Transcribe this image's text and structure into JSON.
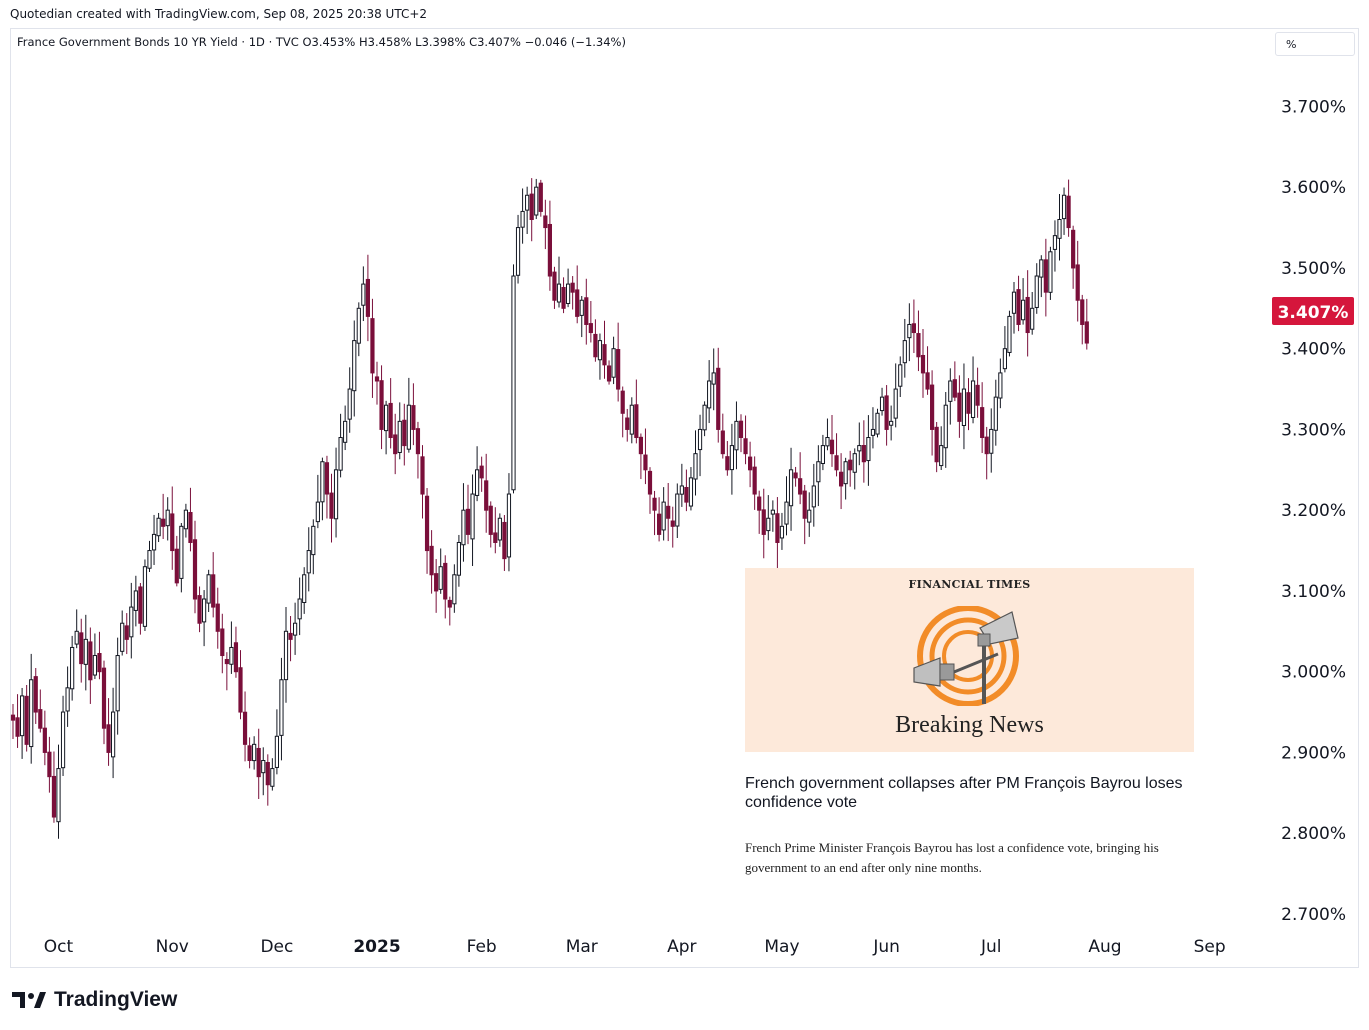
{
  "header": {
    "attribution": "Quotedian created with TradingView.com, Sep 08, 2025 20:38 UTC+2"
  },
  "legend": {
    "text": "France Government Bonds 10 YR Yield · 1D · TVC  O3.453%  H3.458%  L3.398%  C3.407%  −0.046 (−1.34%)"
  },
  "unit_label": "%",
  "last_price_label": "3.407%",
  "colors": {
    "up": "#131722",
    "down": "#7a0f3a",
    "price_tag": "#d5163c",
    "grid": "#e0e3eb"
  },
  "news": {
    "publisher": "FINANCIAL TIMES",
    "badge": "Breaking News",
    "icon": "megaphone-icon",
    "headline": "French government collapses after PM François Bayrou loses confidence vote",
    "summary": "French Prime Minister François Bayrou has lost a confidence vote, bringing his government to an end after only nine months."
  },
  "brand": {
    "name": "TradingView",
    "icon": "tradingview-logo-icon"
  },
  "chart_data": {
    "type": "candlestick",
    "y_axis": {
      "range": [
        2.69,
        3.76
      ],
      "ticks": [
        {
          "value": 3.7,
          "label": "3.700%"
        },
        {
          "value": 3.6,
          "label": "3.600%"
        },
        {
          "value": 3.5,
          "label": "3.500%"
        },
        {
          "value": 3.4,
          "label": "3.400%"
        },
        {
          "value": 3.3,
          "label": "3.300%"
        },
        {
          "value": 3.2,
          "label": "3.200%"
        },
        {
          "value": 3.1,
          "label": "3.100%"
        },
        {
          "value": 3.0,
          "label": "3.000%"
        },
        {
          "value": 2.9,
          "label": "2.900%"
        },
        {
          "value": 2.8,
          "label": "2.800%"
        },
        {
          "value": 2.7,
          "label": "2.700%"
        }
      ]
    },
    "x_axis": {
      "ticks": [
        {
          "index": 10,
          "label": "Oct"
        },
        {
          "index": 35,
          "label": "Nov"
        },
        {
          "index": 58,
          "label": "Dec"
        },
        {
          "index": 80,
          "label": "2025",
          "bold": true
        },
        {
          "index": 103,
          "label": "Feb"
        },
        {
          "index": 125,
          "label": "Mar"
        },
        {
          "index": 147,
          "label": "Apr"
        },
        {
          "index": 169,
          "label": "May"
        },
        {
          "index": 192,
          "label": "Jun"
        },
        {
          "index": 215,
          "label": "Jul"
        },
        {
          "index": 240,
          "label": "Aug"
        },
        {
          "index": 263,
          "label": "Sep"
        }
      ]
    },
    "last_close": 3.407,
    "closes": [
      2.94,
      2.92,
      2.97,
      2.91,
      2.99,
      2.95,
      2.93,
      2.9,
      2.87,
      2.82,
      2.88,
      2.95,
      2.98,
      3.03,
      3.05,
      3.01,
      3.04,
      2.99,
      3.02,
      3.0,
      2.93,
      2.9,
      2.95,
      3.02,
      3.06,
      3.04,
      3.08,
      3.1,
      3.06,
      3.13,
      3.15,
      3.17,
      3.19,
      3.18,
      3.2,
      3.15,
      3.11,
      3.18,
      3.2,
      3.16,
      3.09,
      3.06,
      3.09,
      3.12,
      3.08,
      3.05,
      3.02,
      3.01,
      3.03,
      3.0,
      2.95,
      2.91,
      2.89,
      2.91,
      2.87,
      2.89,
      2.86,
      2.88,
      2.92,
      2.99,
      3.05,
      3.04,
      3.06,
      3.09,
      3.12,
      3.15,
      3.18,
      3.21,
      3.26,
      3.22,
      3.19,
      3.25,
      3.29,
      3.31,
      3.35,
      3.41,
      3.45,
      3.48,
      3.44,
      3.37,
      3.36,
      3.3,
      3.33,
      3.29,
      3.27,
      3.31,
      3.28,
      3.33,
      3.3,
      3.27,
      3.22,
      3.15,
      3.12,
      3.1,
      3.13,
      3.09,
      3.08,
      3.12,
      3.16,
      3.2,
      3.17,
      3.22,
      3.25,
      3.24,
      3.2,
      3.17,
      3.16,
      3.19,
      3.14,
      3.22,
      3.49,
      3.55,
      3.57,
      3.59,
      3.56,
      3.6,
      3.57,
      3.55,
      3.49,
      3.46,
      3.48,
      3.45,
      3.48,
      3.47,
      3.44,
      3.46,
      3.43,
      3.42,
      3.39,
      3.41,
      3.38,
      3.36,
      3.4,
      3.35,
      3.32,
      3.3,
      3.33,
      3.29,
      3.27,
      3.25,
      3.22,
      3.2,
      3.17,
      3.21,
      3.19,
      3.18,
      3.22,
      3.23,
      3.21,
      3.24,
      3.27,
      3.3,
      3.33,
      3.36,
      3.37,
      3.3,
      3.27,
      3.25,
      3.28,
      3.31,
      3.29,
      3.27,
      3.25,
      3.22,
      3.2,
      3.17,
      3.19,
      3.2,
      3.16,
      3.18,
      3.21,
      3.25,
      3.24,
      3.22,
      3.19,
      3.2,
      3.23,
      3.26,
      3.28,
      3.29,
      3.27,
      3.25,
      3.23,
      3.26,
      3.25,
      3.27,
      3.28,
      3.26,
      3.29,
      3.3,
      3.32,
      3.34,
      3.3,
      3.31,
      3.35,
      3.38,
      3.41,
      3.43,
      3.42,
      3.39,
      3.37,
      3.35,
      3.3,
      3.26,
      3.28,
      3.33,
      3.36,
      3.34,
      3.31,
      3.35,
      3.32,
      3.36,
      3.33,
      3.29,
      3.27,
      3.3,
      3.34,
      3.37,
      3.4,
      3.44,
      3.47,
      3.43,
      3.46,
      3.42,
      3.45,
      3.49,
      3.51,
      3.47,
      3.52,
      3.54,
      3.56,
      3.59,
      3.55,
      3.5,
      3.46,
      3.43,
      3.407
    ]
  }
}
